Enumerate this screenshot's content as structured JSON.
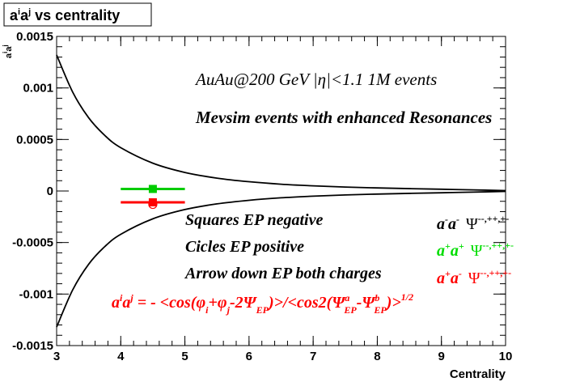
{
  "chart_data": {
    "type": "line",
    "title": "aⁱaʲ vs centrality",
    "title_parts": {
      "base": "a",
      "sup1": "i",
      "base2": "a",
      "sup2": "j",
      "tail": " vs centrality"
    },
    "xlabel": "Centrality",
    "ylabel": "aⁱaʲ",
    "ylabel_parts": {
      "base": "a",
      "sup1": "i",
      "base2": "a",
      "sup2": "j"
    },
    "xlim": [
      3,
      10
    ],
    "ylim": [
      -0.0015,
      0.0015
    ],
    "x_ticks": [
      3,
      4,
      5,
      6,
      7,
      8,
      9,
      10
    ],
    "x_tick_labels": [
      "3",
      "4",
      "5",
      "6",
      "7",
      "8",
      "9",
      "10"
    ],
    "y_ticks": [
      -0.0015,
      -0.001,
      -0.0005,
      0,
      0.0005,
      0.001,
      0.0015
    ],
    "y_tick_labels": [
      "-0.0015",
      "-0.001",
      "-0.0005",
      "0",
      "0.0005",
      "0.001",
      "0.0015"
    ],
    "grid": false,
    "series": [
      {
        "kind": "curve",
        "color": "#000000",
        "x": [
          3,
          3.25,
          3.5,
          3.75,
          4,
          4.5,
          5,
          5.5,
          6,
          6.5,
          7,
          7.5,
          8,
          8.5,
          9,
          9.5,
          10
        ],
        "values": [
          0.00132,
          0.00096,
          0.00071,
          0.00054,
          0.00042,
          0.00027,
          0.00018,
          0.000125,
          9e-05,
          6.6e-05,
          5e-05,
          3.8e-05,
          3e-05,
          2.3e-05,
          1.7e-05,
          1.1e-05,
          4e-06
        ]
      },
      {
        "kind": "curve",
        "color": "#000000",
        "x": [
          3,
          3.25,
          3.5,
          3.75,
          4,
          4.5,
          5,
          5.5,
          6,
          6.5,
          7,
          7.5,
          8,
          8.5,
          9,
          9.5,
          10
        ],
        "values": [
          -0.00132,
          -0.00096,
          -0.00071,
          -0.00054,
          -0.00042,
          -0.00027,
          -0.00018,
          -0.000125,
          -9e-05,
          -6.6e-05,
          -5e-05,
          -3.8e-05,
          -3e-05,
          -2.3e-05,
          -1.7e-05,
          -1.1e-05,
          -4e-06
        ]
      },
      {
        "kind": "marker",
        "color": "#00cc00",
        "marker": "square",
        "x": [
          4.5
        ],
        "values": [
          2e-05
        ],
        "xerr": [
          0.5
        ],
        "yerr": [
          1e-05
        ]
      },
      {
        "kind": "marker",
        "color": "#ff0000",
        "marker": "square",
        "x": [
          4.5
        ],
        "values": [
          -0.00011
        ],
        "xerr": [
          0.5
        ],
        "yerr": [
          1e-05
        ]
      },
      {
        "kind": "marker",
        "color": "#ff0000",
        "marker": "open-circle",
        "x": [
          4.5
        ],
        "values": [
          -0.00013
        ]
      }
    ],
    "annotations": {
      "line1": "AuAu@200 GeV |η|<1.1 1M events",
      "line2": "Mevsim events with enhanced Resonances",
      "squares": "Squares EP negative",
      "circles": "Cicles EP positive",
      "arrow": "Arrow down EP both charges",
      "formula": "aⁱaʲ = - <cos(φᵢ+φⱼ-2ΨEP)>/<cos2(ΨᵃEP-ΨᵇEP)>^1/2",
      "formula_parts": {
        "a": "a",
        "i": "i",
        "j": "j",
        "eq": " = - <cos(",
        "phi": "φ",
        "plus": "+",
        "minus2psi": "-2",
        "psi": "Ψ",
        "ep": "EP",
        "mid": ")>/<cos2(",
        "sa": "a",
        "sb": "b",
        "dash": "-",
        "close": ")>",
        "pow": "1/2"
      },
      "legend": [
        {
          "label": "a⁻a⁻",
          "base": "a",
          "sup": "-",
          "psi_sup": "--,++,+-",
          "color": "#000000"
        },
        {
          "label": "a⁺a⁺",
          "base": "a",
          "sup": "+",
          "psi_sup": "--,++,+-",
          "color": "#00dd00"
        },
        {
          "label": "a⁺a⁻",
          "base": "a",
          "sup": "+",
          "sup2": "-",
          "psi_sup": "--,++,+-",
          "color": "#ff0000"
        }
      ],
      "psi": "Ψ"
    }
  }
}
